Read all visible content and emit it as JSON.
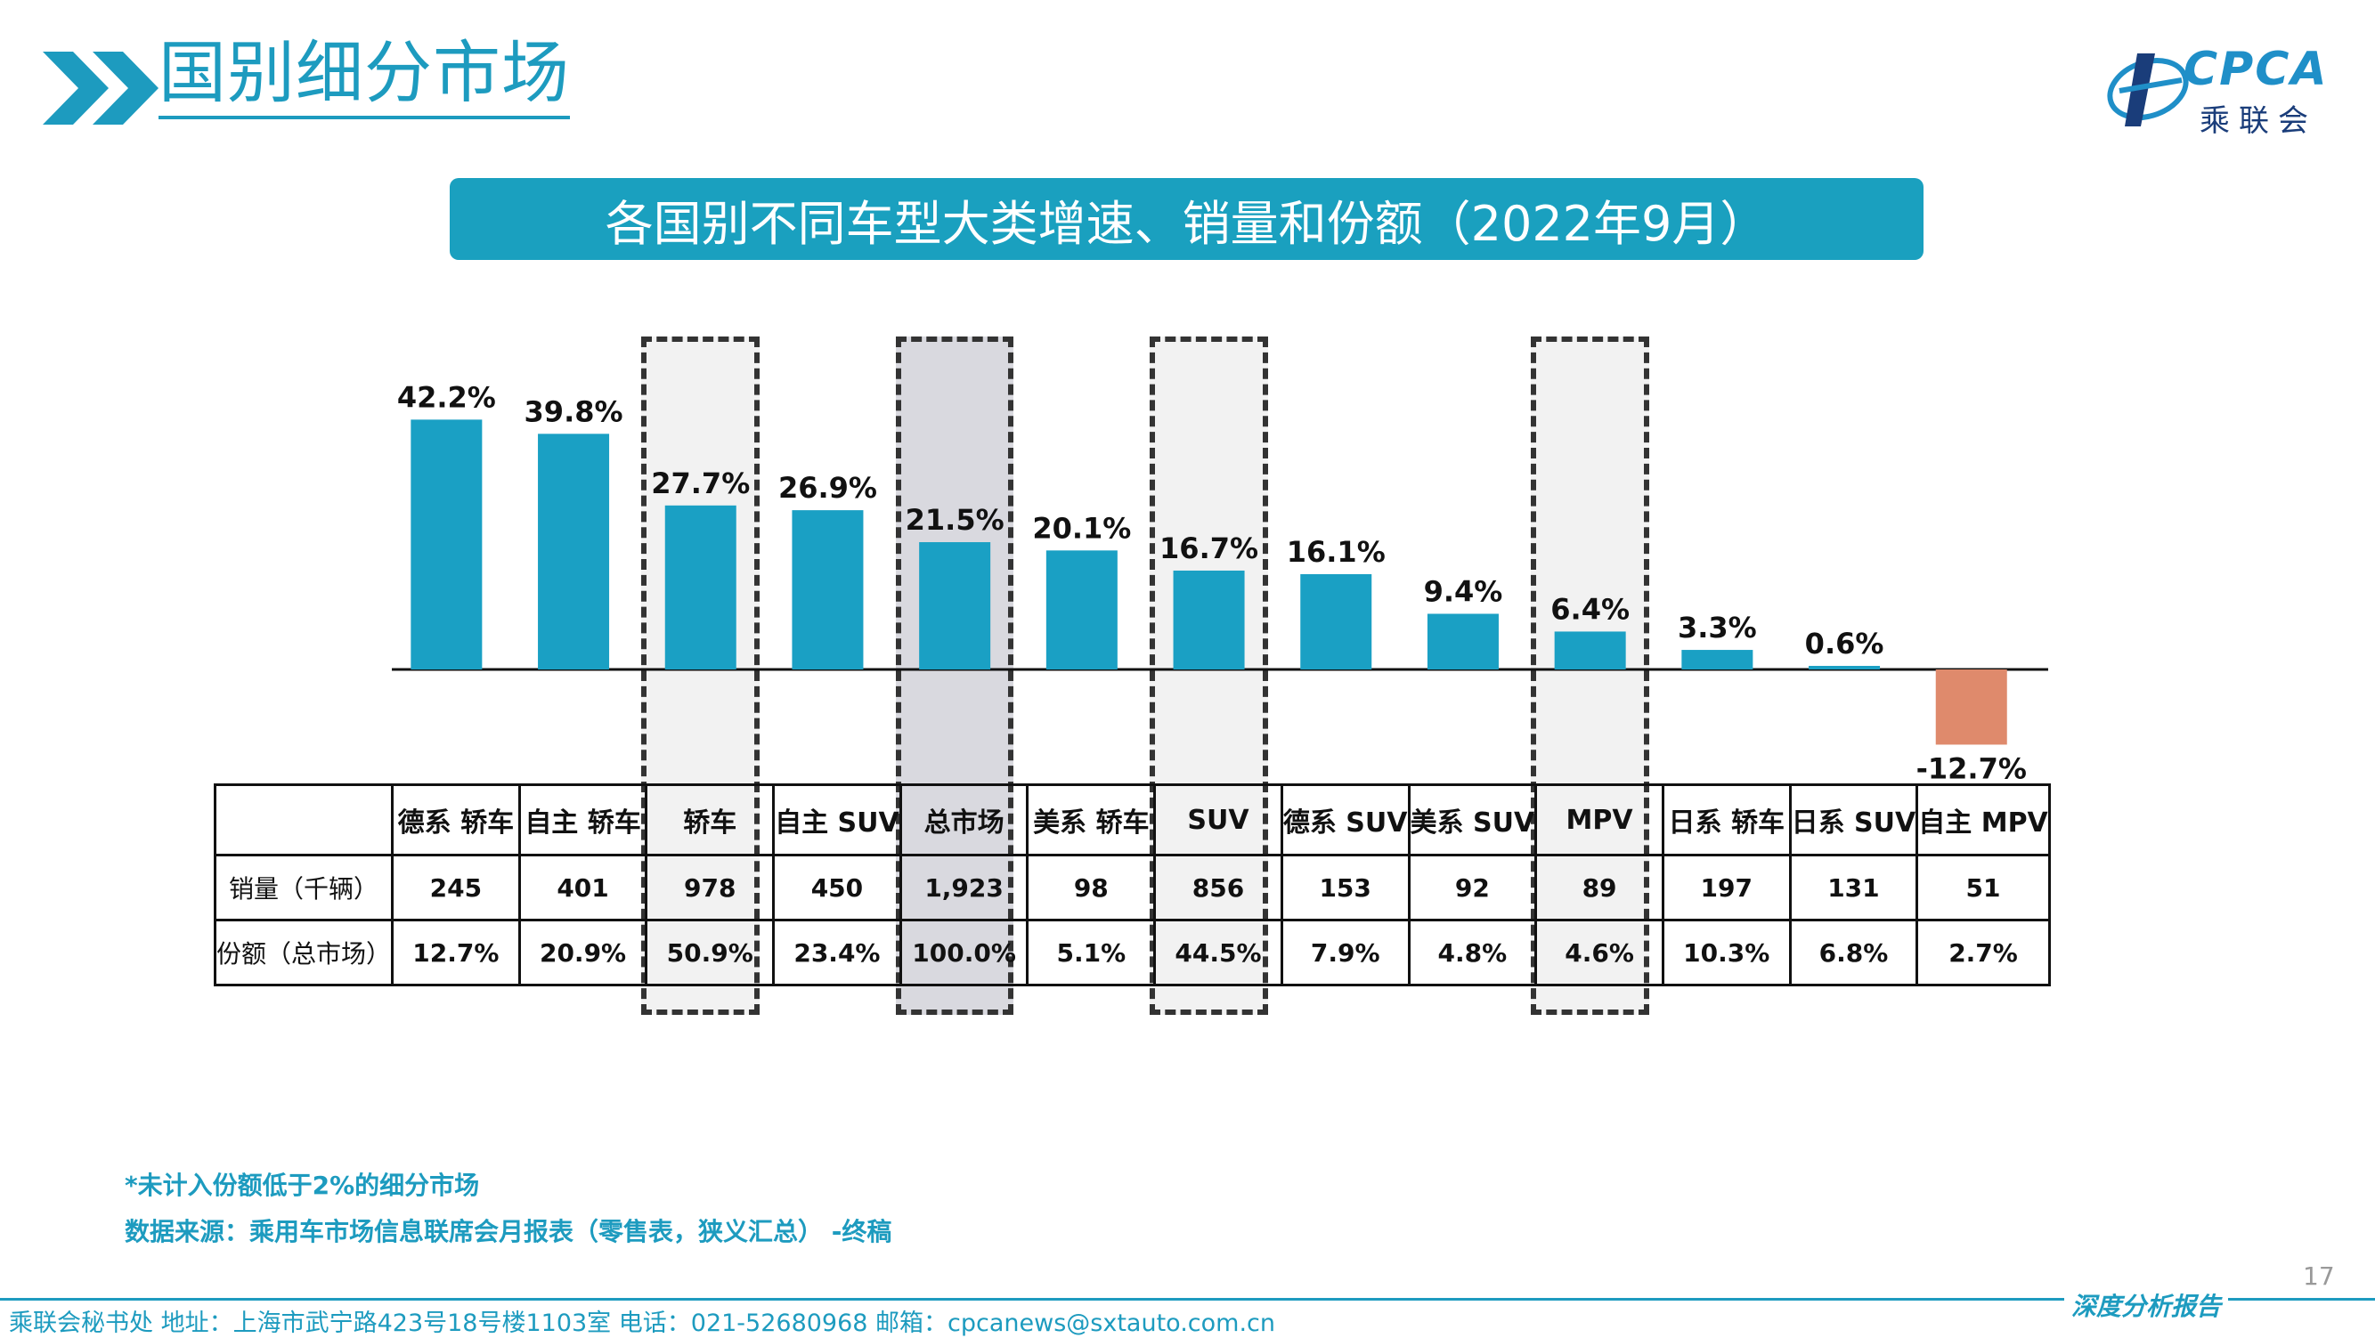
{
  "header": {
    "title": "国别细分市场",
    "logo_text": "CPCA",
    "logo_sub": "乘联会"
  },
  "banner": {
    "title": "各国别不同车型大类增速、销量和份额（2022年9月）"
  },
  "colors": {
    "positive": "#1aa0c4",
    "negative": "#df8a6c",
    "accent": "#1d9bbf"
  },
  "chart_data": {
    "type": "bar",
    "categories": [
      "德系 轿车",
      "自主 轿车",
      "轿车",
      "自主 SUV",
      "总市场",
      "美系 轿车",
      "SUV",
      "德系 SUV",
      "美系 SUV",
      "MPV",
      "日系 轿车",
      "日系 SUV",
      "自主 MPV"
    ],
    "values": [
      42.2,
      39.8,
      27.7,
      26.9,
      21.5,
      20.1,
      16.7,
      16.1,
      9.4,
      6.4,
      3.3,
      0.6,
      -12.7
    ],
    "value_labels": [
      "42.2%",
      "39.8%",
      "27.7%",
      "26.9%",
      "21.5%",
      "20.1%",
      "16.7%",
      "16.1%",
      "9.4%",
      "6.4%",
      "3.3%",
      "0.6%",
      "-12.7%"
    ],
    "highlighted": [
      "轿车",
      "总市场",
      "SUV",
      "MPV"
    ],
    "unit": "%"
  },
  "table": {
    "row_labels": [
      "销量（千辆）",
      "份额（总市场）"
    ],
    "sales": [
      "245",
      "401",
      "978",
      "450",
      "1,923",
      "98",
      "856",
      "153",
      "92",
      "89",
      "197",
      "131",
      "51"
    ],
    "shares": [
      "12.7%",
      "20.9%",
      "50.9%",
      "23.4%",
      "100.0%",
      "5.1%",
      "44.5%",
      "7.9%",
      "4.8%",
      "4.6%",
      "10.3%",
      "6.8%",
      "2.7%"
    ]
  },
  "notes": {
    "note1": "*未计入份额低于2%的细分市场",
    "note2": "数据来源：乘用车市场信息联席会月报表（零售表，狭义汇总） -终稿"
  },
  "footer": {
    "page_number": "17",
    "contact": "乘联会秘书处   地址：上海市武宁路423号18号楼1103室  电话：021-52680968   邮箱：cpcanews@sxtauto.com.cn",
    "tagline": "深度分析报告"
  }
}
